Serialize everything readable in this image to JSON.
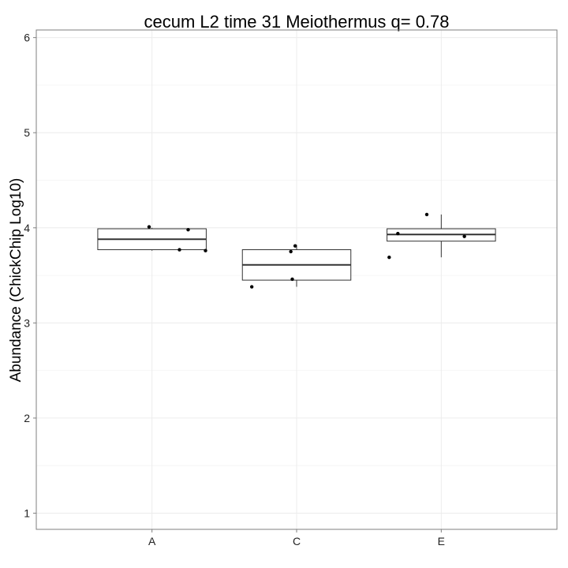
{
  "chart_data": {
    "type": "box",
    "title": "cecum L2 time 31 Meiothermus q= 0.78",
    "xlabel": "",
    "ylabel": "Abundance (ChickChip Log10)",
    "categories": [
      "A",
      "C",
      "E"
    ],
    "ylim": [
      0.83,
      6.08
    ],
    "yticks": [
      1,
      2,
      3,
      4,
      5,
      6
    ],
    "ytick_labels": [
      "1",
      "2",
      "3",
      "4",
      "5",
      "6"
    ],
    "grid": true,
    "legend": "none",
    "boxes": [
      {
        "category": "A",
        "whisker_low": 3.76,
        "q1": 3.77,
        "median": 3.88,
        "q3": 3.99,
        "whisker_high": 4.0
      },
      {
        "category": "C",
        "whisker_low": 3.38,
        "q1": 3.45,
        "median": 3.61,
        "q3": 3.77,
        "whisker_high": 3.82
      },
      {
        "category": "E",
        "whisker_low": 3.69,
        "q1": 3.86,
        "median": 3.93,
        "q3": 3.99,
        "whisker_high": 4.14
      }
    ],
    "points": [
      {
        "category": "A",
        "jitter": -0.02,
        "y": 4.01
      },
      {
        "category": "A",
        "jitter": 0.25,
        "y": 3.98
      },
      {
        "category": "A",
        "jitter": 0.19,
        "y": 3.77
      },
      {
        "category": "A",
        "jitter": 0.37,
        "y": 3.76
      },
      {
        "category": "C",
        "jitter": -0.31,
        "y": 3.38
      },
      {
        "category": "C",
        "jitter": -0.03,
        "y": 3.46
      },
      {
        "category": "C",
        "jitter": -0.04,
        "y": 3.75
      },
      {
        "category": "C",
        "jitter": -0.01,
        "y": 3.81
      },
      {
        "category": "E",
        "jitter": -0.36,
        "y": 3.69
      },
      {
        "category": "E",
        "jitter": -0.3,
        "y": 3.94
      },
      {
        "category": "E",
        "jitter": -0.1,
        "y": 4.14
      },
      {
        "category": "E",
        "jitter": 0.16,
        "y": 3.91
      }
    ],
    "colors": {
      "box_stroke": "#333333",
      "point": "#000000",
      "grid": "#ececec",
      "panel_border": "#7f7f7f"
    }
  }
}
